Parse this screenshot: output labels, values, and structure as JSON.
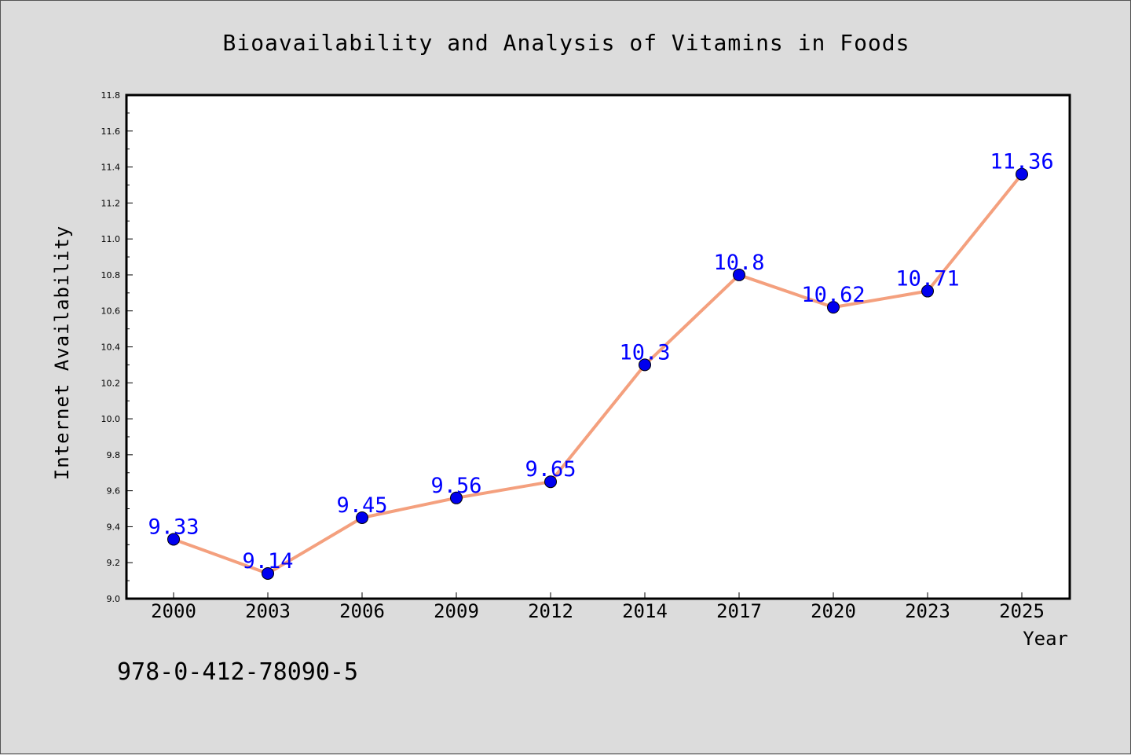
{
  "chart_data": {
    "type": "line",
    "title": "Bioavailability and Analysis of Vitamins in Foods",
    "xlabel": "Year",
    "ylabel": "Internet Availability",
    "categories": [
      "2000",
      "2003",
      "2006",
      "2009",
      "2012",
      "2014",
      "2017",
      "2020",
      "2023",
      "2025"
    ],
    "values": [
      9.33,
      9.14,
      9.45,
      9.56,
      9.65,
      10.3,
      10.8,
      10.62,
      10.71,
      11.36
    ],
    "value_labels": [
      "9.33",
      "9.14",
      "9.45",
      "9.56",
      "9.65",
      "10.3",
      "10.8",
      "10.62",
      "10.71",
      "11.36"
    ],
    "ylim": [
      9.0,
      11.8
    ],
    "yticks": [
      "9.0",
      "9.2",
      "9.4",
      "9.6",
      "9.8",
      "10.0",
      "10.2",
      "10.4",
      "10.6",
      "10.8",
      "11.0",
      "11.2",
      "11.4",
      "11.6",
      "11.8"
    ],
    "grid": false,
    "colors": {
      "line": "#f4a07e",
      "marker": "#0000ee",
      "data_label": "#0000ff",
      "background": "#dcdcdc",
      "plot_area": "#ffffff"
    }
  },
  "footer_text": "978-0-412-78090-5"
}
